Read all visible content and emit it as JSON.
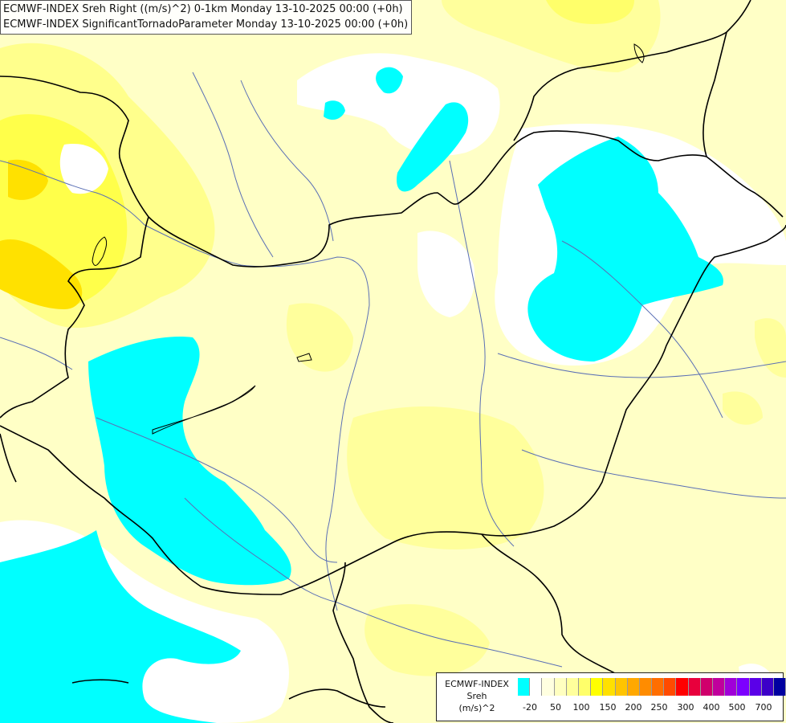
{
  "header": {
    "line1": "ECMWF-INDEX Sreh Right ((m/s)^2) 0-1km Monday 13-10-2025 00:00 (+0h)",
    "line2": "ECMWF-INDEX SignificantTornadoParameter Monday 13-10-2025 00:00 (+0h)"
  },
  "legend": {
    "source": "ECMWF-INDEX",
    "parameter": "Sreh",
    "unit": "(m/s)^2",
    "colors": [
      "#00ffff",
      "#ffffff",
      "#ffffe0",
      "#ffffc0",
      "#ffff9c",
      "#ffff6a",
      "#ffff00",
      "#ffe000",
      "#ffc400",
      "#ffa800",
      "#ff8c00",
      "#ff6e00",
      "#ff4a00",
      "#ff0000",
      "#e8003c",
      "#d0006c",
      "#c0009c",
      "#a000d8",
      "#7c00ff",
      "#5a00e8",
      "#3c00c8",
      "#0000a0"
    ],
    "tick_labels": [
      "-20",
      "50",
      "100",
      "150",
      "200",
      "250",
      "300",
      "400",
      "500",
      "700"
    ]
  }
}
